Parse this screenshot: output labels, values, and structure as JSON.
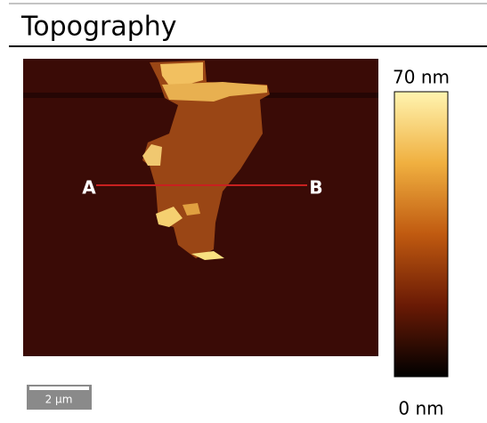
{
  "header": {
    "title": "Topography"
  },
  "image": {
    "label_start": "A",
    "label_end": "B",
    "scale_bar": "2 µm"
  },
  "colorbar": {
    "top_label": "70 nm",
    "bottom_label": "0 nm"
  }
}
